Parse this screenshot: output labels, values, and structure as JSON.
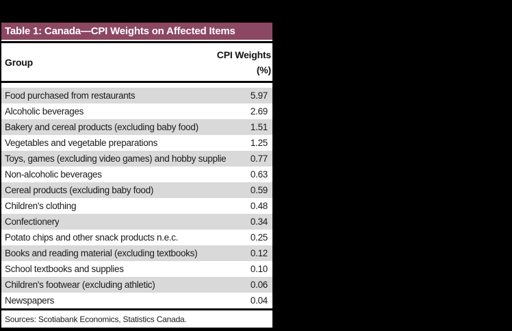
{
  "colors": {
    "background": "#000000",
    "title_bar_bg": "#8C4762",
    "title_text": "#FFFFFF",
    "row_alt_bg": "#D9D9D9",
    "body_text": "#1A1A1A"
  },
  "table": {
    "title": "Table 1: Canada—CPI Weights on Affected Items",
    "columns": {
      "group": "Group",
      "weights_line1": "CPI Weights",
      "weights_line2": "(%)"
    },
    "rows": [
      {
        "group": "Food purchased from restaurants",
        "weight": "5.97"
      },
      {
        "group": "Alcoholic beverages",
        "weight": "2.69"
      },
      {
        "group": "Bakery and cereal products (excluding baby food)",
        "weight": "1.51"
      },
      {
        "group": "Vegetables and vegetable preparations",
        "weight": "1.25"
      },
      {
        "group": "Toys, games (excluding video games) and hobby supplie",
        "weight": "0.77"
      },
      {
        "group": "Non-alcoholic beverages",
        "weight": "0.63"
      },
      {
        "group": "Cereal products (excluding baby food)",
        "weight": "0.59"
      },
      {
        "group": "Children's clothing",
        "weight": "0.48"
      },
      {
        "group": "Confectionery",
        "weight": "0.34"
      },
      {
        "group": "Potato chips and other snack products n.e.c.",
        "weight": "0.25"
      },
      {
        "group": "Books and reading material (excluding textbooks)",
        "weight": "0.12"
      },
      {
        "group": "School textbooks and supplies",
        "weight": "0.10"
      },
      {
        "group": "Children's footwear (excluding athletic)",
        "weight": "0.06"
      },
      {
        "group": "Newspapers",
        "weight": "0.04"
      }
    ],
    "sources": "Sources: Scotiabank Economics, Statistics Canada."
  },
  "chart_data": {
    "type": "table",
    "title": "Table 1: Canada—CPI Weights on Affected Items",
    "columns": [
      "Group",
      "CPI Weights (%)"
    ],
    "rows": [
      [
        "Food purchased from restaurants",
        5.97
      ],
      [
        "Alcoholic beverages",
        2.69
      ],
      [
        "Bakery and cereal products (excluding baby food)",
        1.51
      ],
      [
        "Vegetables and vegetable preparations",
        1.25
      ],
      [
        "Toys, games (excluding video games) and hobby supplie",
        0.77
      ],
      [
        "Non-alcoholic beverages",
        0.63
      ],
      [
        "Cereal products (excluding baby food)",
        0.59
      ],
      [
        "Children's clothing",
        0.48
      ],
      [
        "Confectionery",
        0.34
      ],
      [
        "Potato chips and other snack products n.e.c.",
        0.25
      ],
      [
        "Books and reading material (excluding textbooks)",
        0.12
      ],
      [
        "School textbooks and supplies",
        0.1
      ],
      [
        "Children's footwear (excluding athletic)",
        0.06
      ],
      [
        "Newspapers",
        0.04
      ]
    ],
    "source_note": "Sources: Scotiabank Economics, Statistics Canada."
  }
}
